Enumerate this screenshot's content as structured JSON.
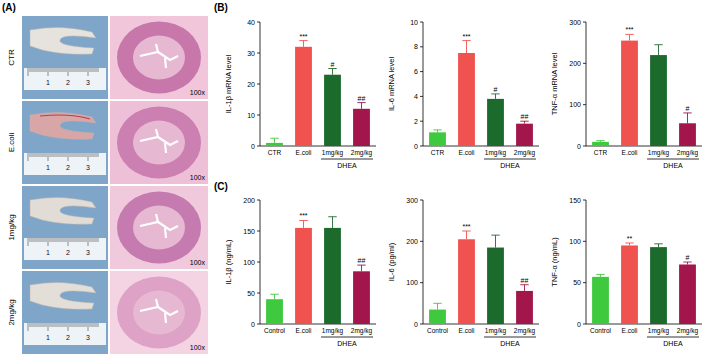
{
  "figure": {
    "panel_labels": [
      "(A)",
      "(B)",
      "(C)"
    ],
    "panel_a": {
      "groups": [
        "CTR",
        "E.coli",
        "1mg/kg",
        "2mg/kg"
      ],
      "magnification": [
        "100x",
        "100x",
        "100x",
        "100x"
      ],
      "ruler_ticks": [
        1,
        2,
        3
      ]
    }
  },
  "chart_data": [
    {
      "type": "bar",
      "y_label": "IL-1β mRNA level",
      "categories": [
        "CTR",
        "E.coli",
        "1mg/kg",
        "2mg/kg"
      ],
      "group_label": "DHEA",
      "values": [
        1,
        32,
        23,
        12
      ],
      "errors": [
        1.5,
        2,
        2,
        2
      ],
      "annotations": [
        null,
        "***",
        "#",
        "##"
      ],
      "colors": [
        "#3ec93e",
        "#f0524f",
        "#1d6b2c",
        "#a3164c"
      ],
      "ylim": [
        0,
        40
      ],
      "yticks": [
        0,
        10,
        20,
        30,
        40
      ]
    },
    {
      "type": "bar",
      "y_label": "IL-6 mRNA level",
      "categories": [
        "CTR",
        "E.coli",
        "1mg/kg",
        "2mg/kg"
      ],
      "group_label": "DHEA",
      "values": [
        1.1,
        7.5,
        3.8,
        1.8
      ],
      "errors": [
        0.2,
        1.0,
        0.4,
        0.2
      ],
      "annotations": [
        null,
        "***",
        "#",
        "##"
      ],
      "colors": [
        "#3ec93e",
        "#f0524f",
        "#1d6b2c",
        "#a3164c"
      ],
      "ylim": [
        0,
        10
      ],
      "yticks": [
        0,
        2,
        4,
        6,
        8,
        10
      ]
    },
    {
      "type": "bar",
      "y_label": "TNF-α mRNA level",
      "categories": [
        "CTR",
        "E.coli",
        "1mg/kg",
        "2mg/kg"
      ],
      "group_label": "DHEA",
      "values": [
        10,
        255,
        220,
        55
      ],
      "errors": [
        3,
        15,
        25,
        25
      ],
      "annotations": [
        null,
        "***",
        null,
        "#"
      ],
      "colors": [
        "#3ec93e",
        "#f0524f",
        "#1d6b2c",
        "#a3164c"
      ],
      "ylim": [
        0,
        300
      ],
      "yticks": [
        0,
        100,
        200,
        300
      ]
    },
    {
      "type": "bar",
      "y_label": "IL-1β (ng/mL)",
      "categories": [
        "Control",
        "E.coli",
        "1mg/kg",
        "2mg/kg"
      ],
      "group_label": "DHEA",
      "values": [
        40,
        155,
        155,
        85
      ],
      "errors": [
        8,
        12,
        18,
        10
      ],
      "annotations": [
        null,
        "***",
        null,
        "##"
      ],
      "colors": [
        "#3ec93e",
        "#f0524f",
        "#1d6b2c",
        "#a3164c"
      ],
      "ylim": [
        0,
        200
      ],
      "yticks": [
        0,
        50,
        100,
        150,
        200
      ]
    },
    {
      "type": "bar",
      "y_label": "IL-6 (pg/ml)",
      "categories": [
        "Control",
        "E.coli",
        "1mg/kg",
        "2mg/kg"
      ],
      "group_label": "DHEA",
      "values": [
        35,
        205,
        185,
        80
      ],
      "errors": [
        15,
        20,
        30,
        15
      ],
      "annotations": [
        null,
        "***",
        null,
        "##"
      ],
      "colors": [
        "#3ec93e",
        "#f0524f",
        "#1d6b2c",
        "#a3164c"
      ],
      "ylim": [
        0,
        300
      ],
      "yticks": [
        0,
        100,
        200,
        300
      ]
    },
    {
      "type": "bar",
      "y_label": "TNF-α (ng/mL)",
      "categories": [
        "Control",
        "E.coli",
        "1mg/kg",
        "2mg/kg"
      ],
      "group_label": "DHEA",
      "values": [
        57,
        95,
        93,
        72
      ],
      "errors": [
        3,
        3,
        4,
        3
      ],
      "annotations": [
        null,
        "**",
        null,
        "#"
      ],
      "colors": [
        "#3ec93e",
        "#f0524f",
        "#1d6b2c",
        "#a3164c"
      ],
      "ylim": [
        0,
        150
      ],
      "yticks": [
        0,
        50,
        100,
        150
      ]
    }
  ]
}
